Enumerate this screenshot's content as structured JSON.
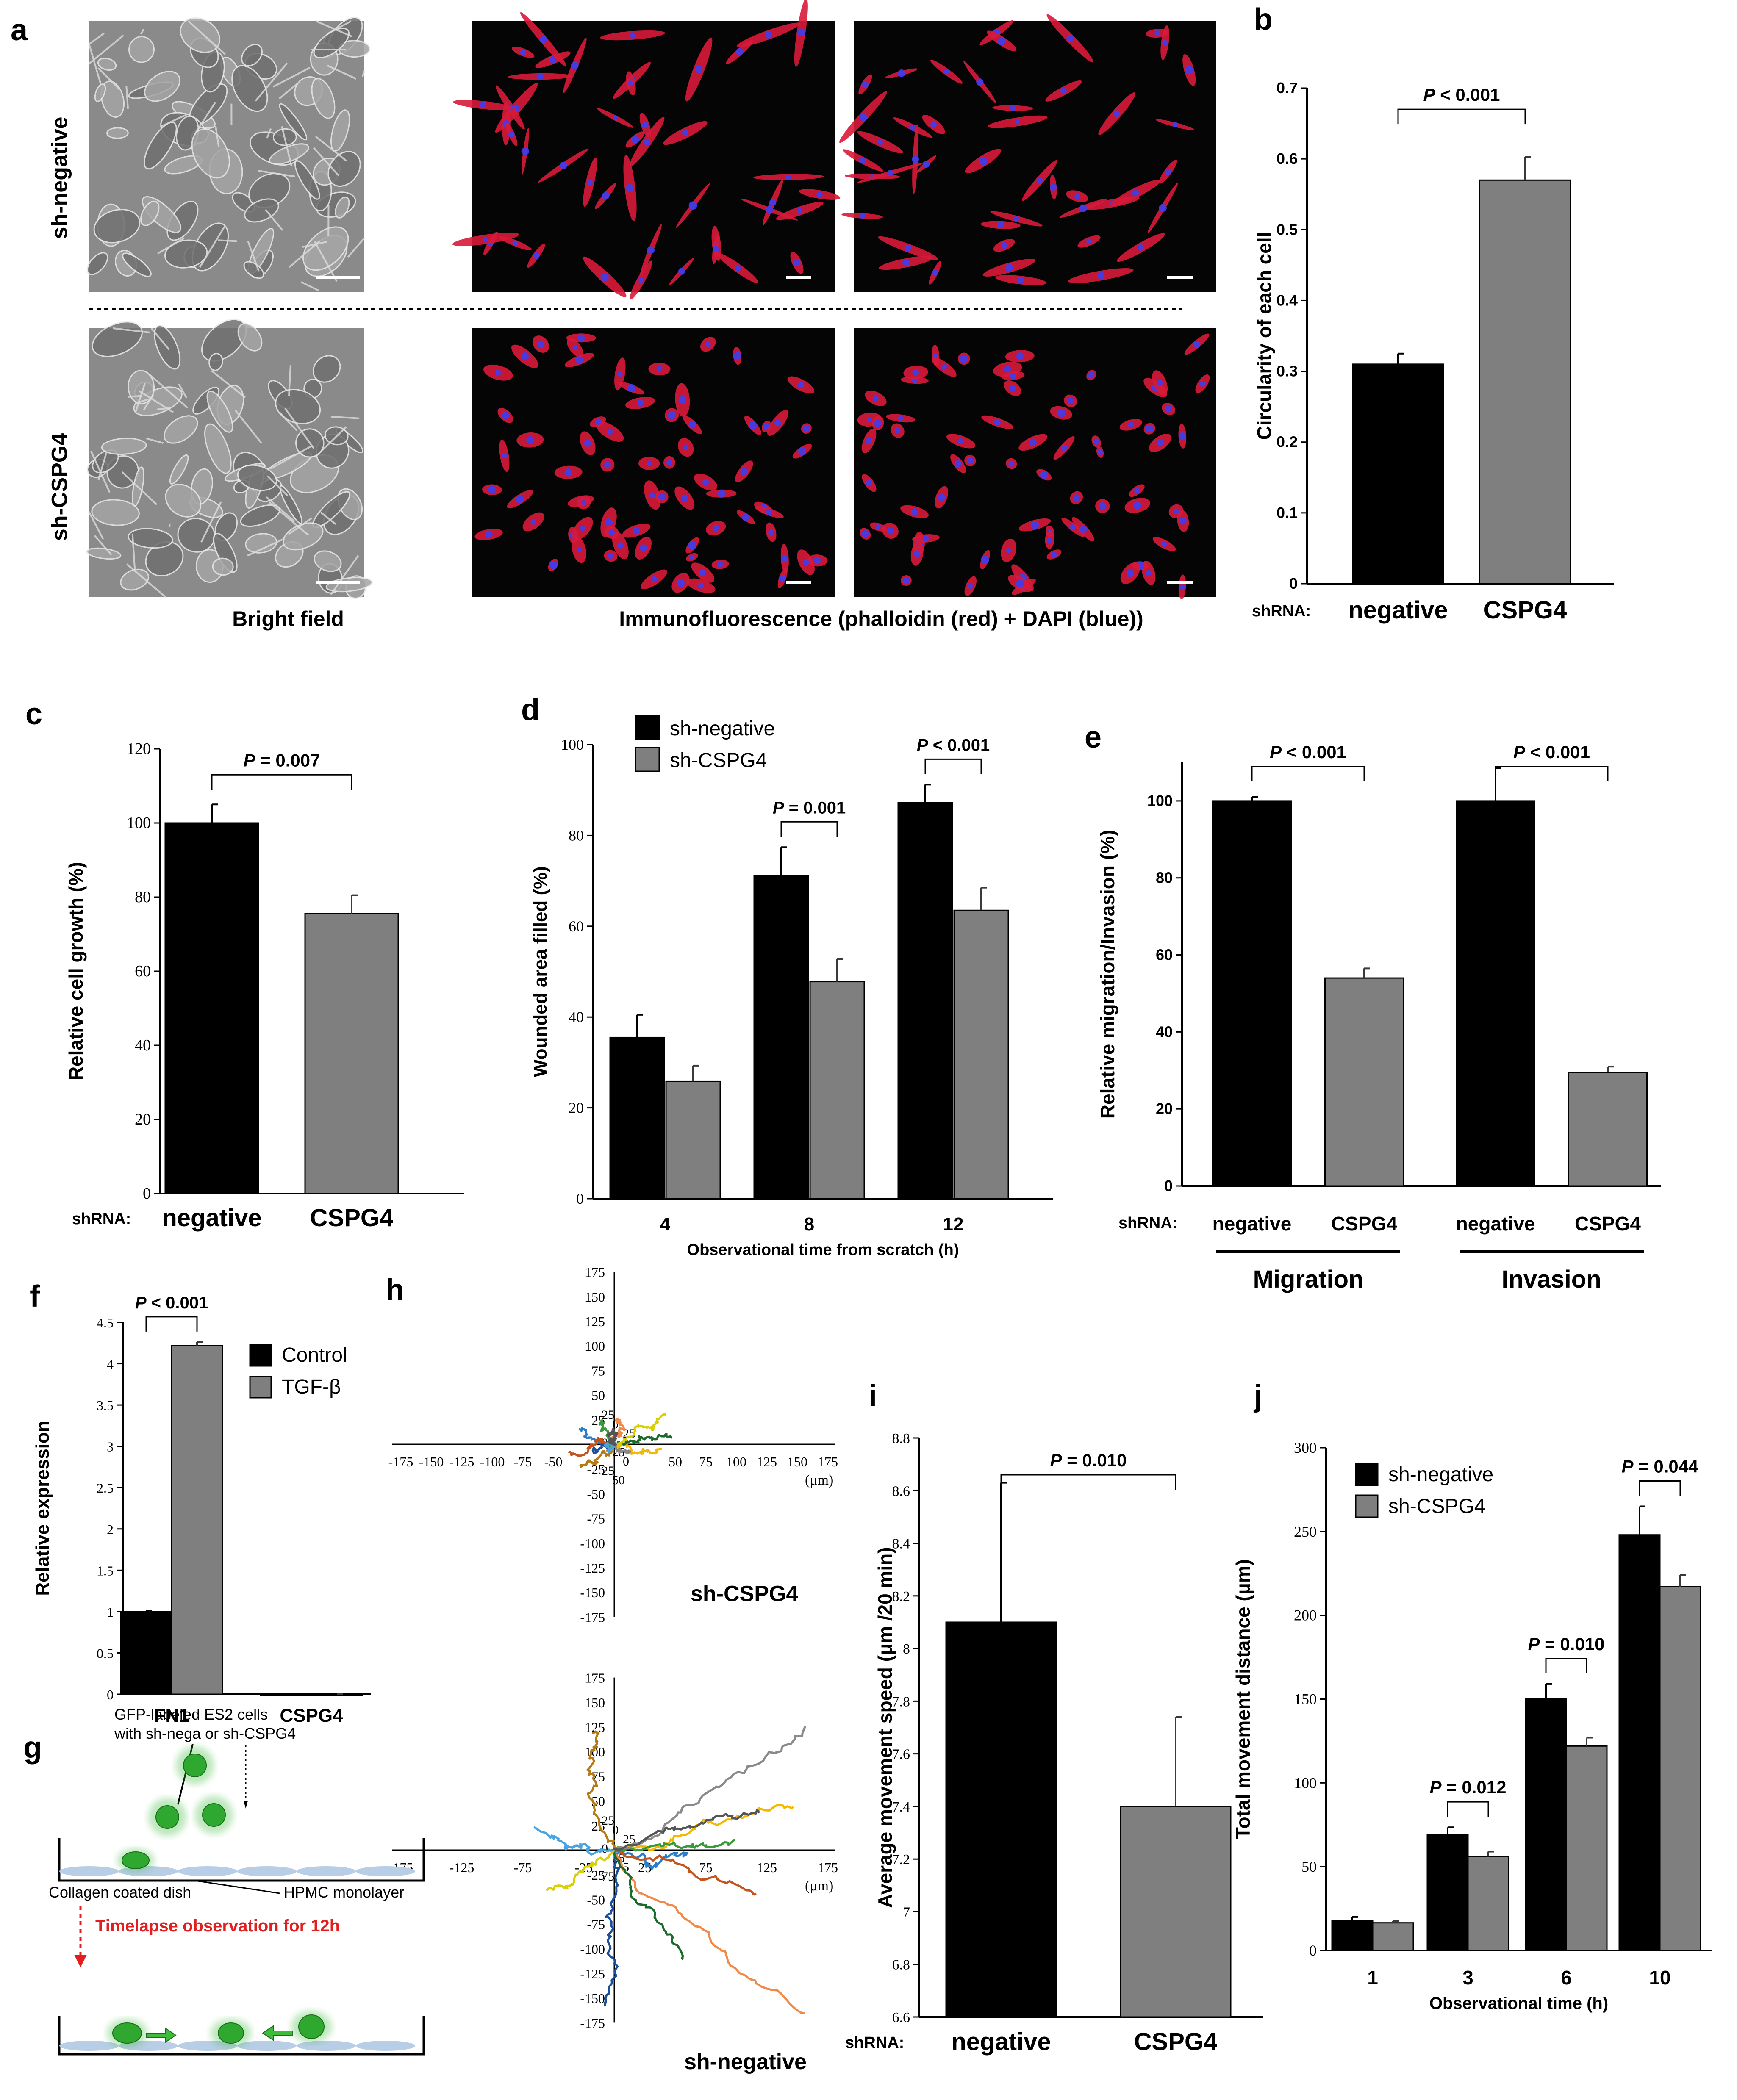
{
  "panel_letters": [
    "a",
    "b",
    "c",
    "d",
    "e",
    "f",
    "g",
    "h",
    "i",
    "j"
  ],
  "colors": {
    "black_bar": "#000000",
    "gray_bar": "#7f7f7f",
    "fluor_red": "#d8193a",
    "fluor_blue": "#3d3df0",
    "gfp_green": "#3dbb3d",
    "arrow_red": "#e02020"
  },
  "panel_a": {
    "row_labels": [
      "sh-negative",
      "sh-CSPG4"
    ],
    "caption_bright": "Bright field",
    "caption_if": "Immunofluorescence (phalloidin (red) + DAPI (blue))"
  },
  "panel_g": {
    "cells_label_1": "GFP-labeled ES2 cells",
    "cells_label_2": "with sh-nega or sh-CSPG4",
    "dish_label": "Collagen coated dish",
    "hpmc_label": "HPMC monolayer",
    "timelapse_label": "Timelapse observation for 12h"
  },
  "panel_h": {
    "upper_label": "sh-CSPG4",
    "lower_label": "sh-negative",
    "unit": "(μm)",
    "x_ticks": [
      "-175",
      "-150",
      "-125",
      "-100",
      "-75",
      "-50",
      "-25",
      "25",
      "50",
      "75",
      "100",
      "125",
      "150",
      "175"
    ],
    "y_ticks": [
      "175",
      "150",
      "125",
      "100",
      "75",
      "50",
      "25",
      "-25",
      "-50",
      "-75",
      "-100",
      "-125",
      "-150",
      "-175"
    ],
    "lower_x_ticks": [
      "-175",
      "-125",
      "-75",
      "-25",
      "25",
      "75",
      "125",
      "175"
    ],
    "upper_center_ticks": [
      "25",
      "0",
      "25",
      "0",
      "25",
      "0",
      "25",
      "50"
    ],
    "lower_center_ticks": [
      "25",
      "0",
      "25",
      "0",
      "25",
      "5",
      "75"
    ]
  },
  "chart_data": [
    {
      "panel": "b",
      "type": "bar",
      "ylabel": "Circularity of each cell",
      "axis_prefix": "shRNA:",
      "categories": [
        "negative",
        "CSPG4"
      ],
      "values": [
        0.31,
        0.57
      ],
      "errors": [
        0.015,
        0.033
      ],
      "ylim": [
        0,
        0.7
      ],
      "yticks": [
        "0",
        "0.1",
        "0.2",
        "0.3",
        "0.4",
        "0.5",
        "0.6",
        "0.7"
      ],
      "annotations": [
        {
          "text": "P < 0.001",
          "between": [
            0,
            1
          ]
        }
      ]
    },
    {
      "panel": "c",
      "type": "bar",
      "ylabel": "Relative cell growth (%)",
      "axis_prefix": "shRNA:",
      "categories": [
        "negative",
        "CSPG4"
      ],
      "values": [
        100,
        75.5
      ],
      "errors": [
        5,
        5
      ],
      "ylim": [
        0,
        120
      ],
      "yticks": [
        "0",
        "20",
        "40",
        "60",
        "80",
        "100",
        "120"
      ],
      "annotations": [
        {
          "text": "P = 0.007",
          "between": [
            0,
            1
          ]
        }
      ]
    },
    {
      "panel": "d",
      "type": "bar",
      "xlabel": "Observational time from scratch (h)",
      "ylabel": "Wounded area filled (%)",
      "categories": [
        "4",
        "8",
        "12"
      ],
      "series": [
        {
          "name": "sh-negative",
          "values": [
            35.5,
            71.2,
            87.2
          ],
          "errors": [
            5,
            6.2,
            4
          ]
        },
        {
          "name": "sh-CSPG4",
          "values": [
            25.8,
            47.8,
            63.5
          ],
          "errors": [
            3.5,
            5,
            5
          ]
        }
      ],
      "ylim": [
        0,
        100
      ],
      "yticks": [
        "0",
        "20",
        "40",
        "60",
        "80",
        "100"
      ],
      "legend": "top-left",
      "annotations": [
        {
          "text": "P = 0.001",
          "group": 1
        },
        {
          "text": "P < 0.001",
          "group": 2
        }
      ]
    },
    {
      "panel": "e",
      "type": "bar",
      "ylabel": "Relative migration/Invasion (%)",
      "axis_prefix": "shRNA:",
      "categories": [
        "negative",
        "CSPG4",
        "negative",
        "CSPG4"
      ],
      "groups": [
        "Migration",
        "Invasion"
      ],
      "values": [
        100,
        54,
        100,
        29.5
      ],
      "errors": [
        1,
        2.5,
        8.5,
        1.5
      ],
      "ylim": [
        0,
        110
      ],
      "yticks": [
        "0",
        "20",
        "40",
        "60",
        "80",
        "100"
      ],
      "annotations": [
        {
          "text": "P < 0.001",
          "between": [
            0,
            1
          ]
        },
        {
          "text": "P < 0.001",
          "between": [
            2,
            3
          ]
        }
      ]
    },
    {
      "panel": "f",
      "type": "bar",
      "ylabel": "Relative expression",
      "categories": [
        "FN1",
        "CSPG4"
      ],
      "series": [
        {
          "name": "Control",
          "values": [
            1.0,
            0.0
          ],
          "errors": [
            0.01,
            0.005
          ]
        },
        {
          "name": "TGF-β",
          "values": [
            4.22,
            0.0
          ],
          "errors": [
            0.04,
            0.005
          ]
        }
      ],
      "ylim": [
        0,
        4.5
      ],
      "yticks": [
        "0",
        "0.5",
        "1",
        "1.5",
        "2",
        "2.5",
        "3",
        "3.5",
        "4",
        "4.5"
      ],
      "legend": "right",
      "annotations": [
        {
          "text": "P < 0.001",
          "group": 0
        }
      ]
    },
    {
      "panel": "i",
      "type": "bar",
      "ylabel": "Average movement speed (μm /20 min)",
      "axis_prefix": "shRNA:",
      "categories": [
        "negative",
        "CSPG4"
      ],
      "values": [
        8.1,
        7.4
      ],
      "errors": [
        0.53,
        0.34
      ],
      "ylim": [
        6.6,
        8.8
      ],
      "yticks": [
        "6.6",
        "6.8",
        "7",
        "7.2",
        "7.4",
        "7.6",
        "7.8",
        "8",
        "8.2",
        "8.4",
        "8.6",
        "8.8"
      ],
      "annotations": [
        {
          "text": "P = 0.010",
          "between": [
            0,
            1
          ]
        }
      ]
    },
    {
      "panel": "j",
      "type": "bar",
      "xlabel": "Observational time (h)",
      "ylabel": "Total movement distance (μm)",
      "categories": [
        "1",
        "3",
        "6",
        "10"
      ],
      "series": [
        {
          "name": "sh-negative",
          "values": [
            18,
            69,
            150,
            248
          ],
          "errors": [
            2,
            4.5,
            9,
            17
          ]
        },
        {
          "name": "sh-CSPG4",
          "values": [
            16.5,
            56,
            122,
            217
          ],
          "errors": [
            1,
            3,
            5,
            7
          ]
        }
      ],
      "ylim": [
        0,
        300
      ],
      "yticks": [
        "0",
        "50",
        "100",
        "150",
        "200",
        "250",
        "300"
      ],
      "legend": "top-left",
      "annotations": [
        {
          "text": "P = 0.012",
          "group": 1
        },
        {
          "text": "P = 0.010",
          "group": 2
        },
        {
          "text": "P = 0.044",
          "group": 3
        }
      ]
    }
  ]
}
